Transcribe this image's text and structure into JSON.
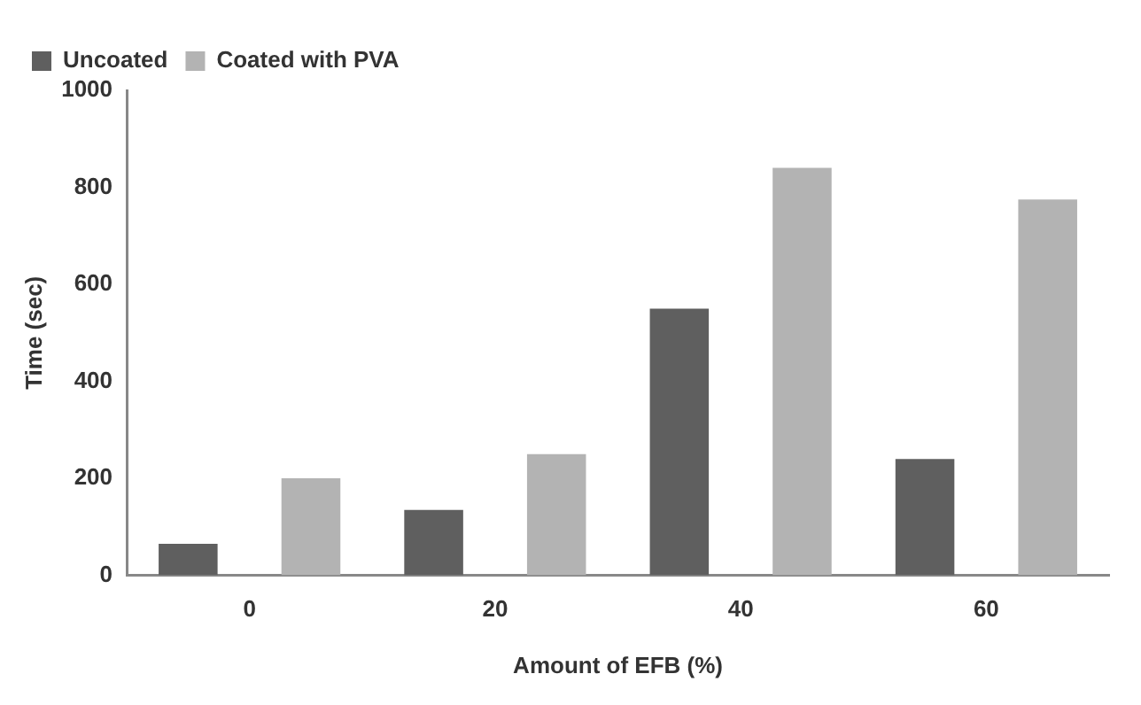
{
  "chart_data": {
    "type": "bar",
    "xlabel": "Amount of EFB (%)",
    "ylabel": "Time (sec)",
    "categories": [
      "0",
      "20",
      "40",
      "60"
    ],
    "series": [
      {
        "name": "Uncoated",
        "color": "#5f5f5f",
        "values": [
          65,
          135,
          550,
          240
        ]
      },
      {
        "name": "Coated with PVA",
        "color": "#b3b3b3",
        "values": [
          200,
          250,
          840,
          775
        ]
      }
    ],
    "ylim": [
      0,
      1000
    ],
    "yticks": [
      0,
      200,
      400,
      600,
      800,
      1000
    ],
    "grid": false,
    "legend": "top left"
  }
}
